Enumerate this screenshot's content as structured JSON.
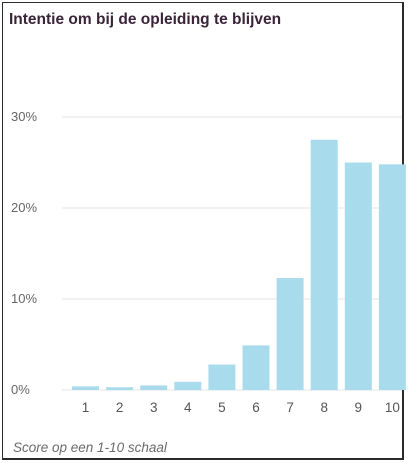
{
  "chart_data": {
    "type": "bar",
    "title": "Intentie om bij de opleiding te blijven",
    "xlabel": "Score op een 1-10 schaal",
    "ylabel": "",
    "categories": [
      "1",
      "2",
      "3",
      "4",
      "5",
      "6",
      "7",
      "8",
      "9",
      "10"
    ],
    "values": [
      0.4,
      0.3,
      0.5,
      0.9,
      2.8,
      4.9,
      12.3,
      27.5,
      25.0,
      24.8
    ],
    "y_ticks": [
      "0%",
      "10%",
      "20%",
      "30%"
    ],
    "ylim": [
      0,
      30
    ],
    "grid": true,
    "legend": "none",
    "colors": {
      "bar": "#a8dcec",
      "grid": "#e6e6e6",
      "title": "#3a2438"
    }
  }
}
